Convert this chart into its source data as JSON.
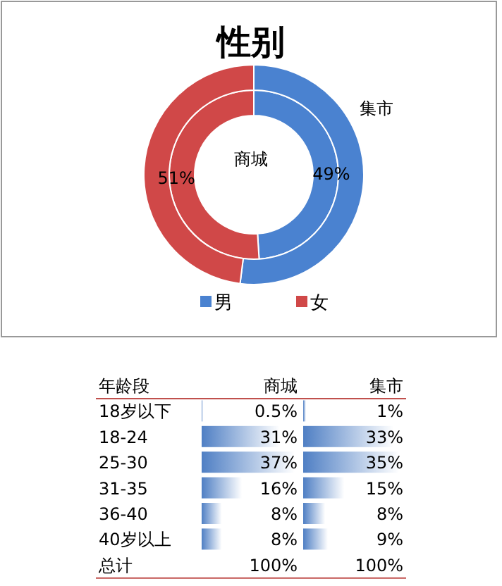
{
  "chart_data": [
    {
      "type": "donut",
      "title": "性别",
      "categories": [
        "男",
        "女"
      ],
      "legend": "bottom",
      "series": [
        {
          "name": "商城",
          "values": [
            49,
            51
          ],
          "colors": [
            "#4a82d0",
            "#d04848"
          ],
          "value_labels": [
            "49%",
            "51%"
          ]
        },
        {
          "name": "集市",
          "values": [
            52,
            48
          ],
          "colors": [
            "#4a82d0",
            "#d04848"
          ],
          "value_labels": [
            null,
            null
          ]
        }
      ]
    },
    {
      "type": "bar",
      "orientation": "horizontal",
      "ylabel": "年龄段",
      "categories": [
        "18岁以下",
        "18-24",
        "25-30",
        "31-35",
        "36-40",
        "40岁以上"
      ],
      "series": [
        {
          "name": "商城",
          "color": "#4f7fc4",
          "values": [
            0.5,
            31,
            37,
            16,
            8,
            8
          ],
          "value_labels": [
            "0.5%",
            "31%",
            "37%",
            "16%",
            "8%",
            "8%"
          ]
        }
      ],
      "annotations": [
        "总计",
        "100%"
      ]
    },
    {
      "type": "bar",
      "orientation": "horizontal",
      "categories": [
        null,
        null,
        null,
        null,
        null,
        null
      ],
      "series": [
        {
          "name": "集市",
          "color": "#4f7fc4",
          "values": [
            1,
            33,
            35,
            15,
            8,
            9
          ],
          "value_labels": [
            "1%",
            "33%",
            "35%",
            "15%",
            "8%",
            "9%"
          ]
        }
      ],
      "annotations": [
        "100%"
      ]
    }
  ]
}
